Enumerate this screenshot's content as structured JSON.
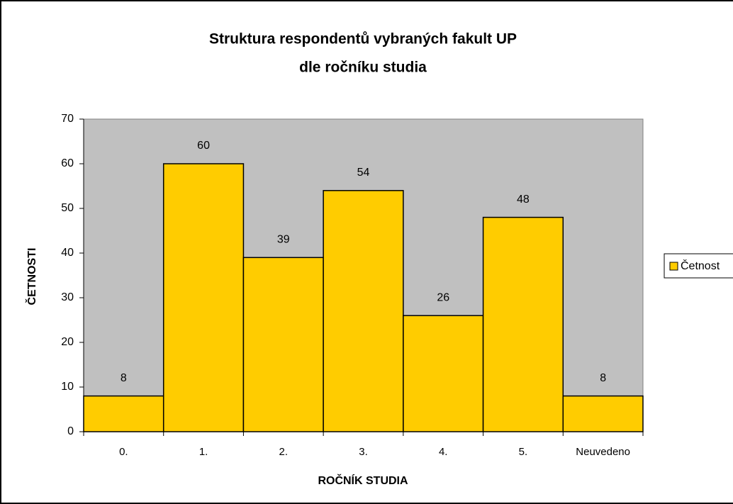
{
  "chart_data": {
    "type": "bar",
    "title": [
      "Struktura respondentů vybraných fakult UP",
      "dle ročníku studia"
    ],
    "x_label": "ROČNÍK STUDIA",
    "y_label": "ČETNOSTI",
    "categories": [
      "0.",
      "1.",
      "2.",
      "3.",
      "4.",
      "5.",
      "Neuvedeno"
    ],
    "series": [
      {
        "name": "Četnost",
        "color": "#ffcc00",
        "values": [
          8,
          60,
          39,
          54,
          26,
          48,
          8
        ]
      }
    ],
    "ylim": [
      0,
      70
    ],
    "yticks": [
      0,
      10,
      20,
      30,
      40,
      50,
      60,
      70
    ],
    "plot_background": "#c0c0c0",
    "legend": "right"
  }
}
